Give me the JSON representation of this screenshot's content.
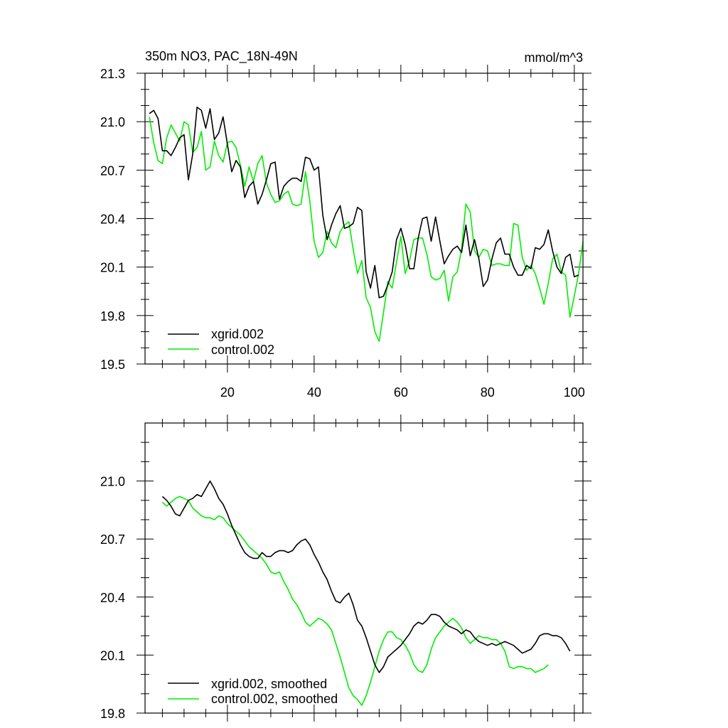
{
  "chart_data": [
    {
      "type": "line",
      "title": "350m NO3, PAC_18N-49N",
      "units": "mmol/m^3",
      "xlim": [
        1,
        102
      ],
      "ylim": [
        19.5,
        21.3
      ],
      "xticks": [
        20,
        40,
        60,
        80,
        100
      ],
      "xtick_labels": [
        "20",
        "40",
        "60",
        "80",
        "100"
      ],
      "yticks": [
        19.5,
        19.8,
        20.1,
        20.4,
        20.7,
        21.0,
        21.3
      ],
      "ytick_labels": [
        "19.5",
        "19.8",
        "20.1",
        "20.4",
        "20.7",
        "21.0",
        "21.3"
      ],
      "legend_position": "bottom-left",
      "series": [
        {
          "name": "xgrid.002",
          "color": "#000000",
          "x_start": 2,
          "values": [
            21.05,
            21.07,
            21.02,
            20.82,
            20.82,
            20.79,
            20.84,
            20.9,
            20.92,
            20.64,
            20.8,
            21.09,
            21.07,
            20.96,
            21.08,
            20.89,
            20.93,
            21.03,
            20.86,
            20.69,
            20.76,
            20.72,
            20.53,
            20.6,
            20.63,
            20.49,
            20.55,
            20.64,
            20.74,
            20.75,
            20.52,
            20.6,
            20.63,
            20.65,
            20.65,
            20.63,
            20.78,
            20.77,
            20.7,
            20.72,
            20.42,
            20.27,
            20.36,
            20.43,
            20.48,
            20.34,
            20.35,
            20.37,
            20.47,
            20.45,
            20.07,
            19.97,
            20.11,
            19.91,
            19.92,
            19.99,
            20.07,
            20.27,
            20.34,
            20.24,
            20.09,
            20.09,
            20.28,
            20.4,
            20.41,
            20.26,
            20.41,
            20.26,
            20.12,
            20.17,
            20.21,
            20.23,
            20.19,
            20.36,
            20.17,
            20.27,
            20.15,
            19.98,
            20.02,
            20.15,
            20.25,
            20.28,
            20.18,
            20.18,
            20.1,
            20.05,
            20.05,
            20.11,
            20.09,
            20.22,
            20.21,
            20.24,
            20.33,
            20.2,
            20.1,
            20.06,
            20.16,
            20.18,
            20.04,
            20.05
          ]
        },
        {
          "name": "control.002",
          "color": "#00ee00",
          "x_start": 2,
          "values": [
            21.03,
            20.87,
            20.76,
            20.74,
            20.9,
            20.98,
            20.93,
            20.88,
            21.0,
            20.98,
            20.81,
            20.84,
            20.94,
            20.7,
            20.72,
            20.88,
            20.79,
            20.75,
            20.87,
            20.88,
            20.84,
            20.73,
            20.6,
            20.72,
            20.63,
            20.74,
            20.79,
            20.62,
            20.55,
            20.5,
            20.51,
            20.55,
            20.57,
            20.49,
            20.48,
            20.49,
            20.69,
            20.51,
            20.26,
            20.16,
            20.19,
            20.32,
            20.25,
            20.22,
            20.32,
            20.36,
            20.38,
            20.21,
            20.06,
            20.14,
            19.91,
            19.85,
            19.7,
            19.64,
            19.82,
            20.01,
            19.97,
            20.13,
            20.29,
            20.06,
            20.14,
            20.27,
            20.28,
            20.28,
            20.18,
            20.04,
            20.02,
            20.03,
            20.08,
            19.89,
            20.04,
            20.07,
            20.21,
            20.49,
            20.44,
            20.2,
            20.16,
            20.21,
            20.2,
            20.11,
            20.12,
            20.12,
            20.11,
            20.11,
            20.37,
            20.36,
            20.16,
            20.08,
            20.11,
            20.06,
            19.97,
            19.87,
            20.0,
            20.15,
            20.18,
            20.07,
            20.05,
            19.79,
            19.92,
            20.06,
            20.26
          ]
        }
      ]
    },
    {
      "type": "line",
      "title": "",
      "xlim": [
        1,
        102
      ],
      "ylim": [
        19.8,
        21.3
      ],
      "xticks": [
        20,
        40,
        60,
        80,
        100
      ],
      "yticks": [
        19.8,
        20.1,
        20.4,
        20.7,
        21.0
      ],
      "ytick_labels": [
        "19.8",
        "20.1",
        "20.4",
        "20.7",
        "21.0"
      ],
      "legend_position": "bottom-left",
      "series": [
        {
          "name": "xgrid.002, smoothed",
          "color": "#000000",
          "x_start": 5,
          "values": [
            20.92,
            20.9,
            20.87,
            20.83,
            20.82,
            20.86,
            20.9,
            20.91,
            20.93,
            20.92,
            20.96,
            21.0,
            20.96,
            20.91,
            20.88,
            20.83,
            20.77,
            20.72,
            20.67,
            20.63,
            20.61,
            20.6,
            20.6,
            20.63,
            20.61,
            20.61,
            20.63,
            20.64,
            20.64,
            20.63,
            20.64,
            20.67,
            20.69,
            20.7,
            20.67,
            20.62,
            20.58,
            20.53,
            20.49,
            20.43,
            20.38,
            20.37,
            20.4,
            20.42,
            20.36,
            20.28,
            20.25,
            20.19,
            20.12,
            20.05,
            20.01,
            20.04,
            20.09,
            20.11,
            20.13,
            20.15,
            20.18,
            20.21,
            20.25,
            20.27,
            20.26,
            20.28,
            20.31,
            20.31,
            20.3,
            20.27,
            20.25,
            20.24,
            20.23,
            20.21,
            20.23,
            20.22,
            20.19,
            20.17,
            20.16,
            20.15,
            20.16,
            20.15,
            20.16,
            20.17,
            20.16,
            20.15,
            20.13,
            20.11,
            20.12,
            20.13,
            20.16,
            20.2,
            20.21,
            20.21,
            20.2,
            20.2,
            20.19,
            20.16,
            20.12
          ]
        },
        {
          "name": "control.002, smoothed",
          "color": "#00ee00",
          "x_start": 5,
          "values": [
            20.89,
            20.87,
            20.89,
            20.91,
            20.92,
            20.91,
            20.9,
            20.86,
            20.84,
            20.82,
            20.81,
            20.81,
            20.8,
            20.82,
            20.81,
            20.78,
            20.76,
            20.74,
            20.72,
            20.69,
            20.66,
            20.64,
            20.62,
            20.6,
            20.57,
            20.53,
            20.52,
            20.53,
            20.48,
            20.44,
            20.39,
            20.36,
            20.32,
            20.27,
            20.25,
            20.27,
            20.29,
            20.28,
            20.26,
            20.23,
            20.16,
            20.09,
            20.01,
            19.93,
            19.89,
            19.87,
            19.84,
            19.89,
            19.96,
            20.04,
            20.12,
            20.18,
            20.22,
            20.22,
            20.19,
            20.18,
            20.15,
            20.11,
            20.05,
            20.02,
            20.01,
            20.05,
            20.13,
            20.19,
            20.22,
            20.25,
            20.27,
            20.29,
            20.27,
            20.24,
            20.19,
            20.16,
            20.18,
            20.2,
            20.19,
            20.19,
            20.18,
            20.18,
            20.16,
            20.12,
            20.04,
            20.03,
            20.04,
            20.04,
            20.03,
            20.03,
            20.01,
            20.02,
            20.03,
            20.05
          ]
        }
      ]
    }
  ]
}
